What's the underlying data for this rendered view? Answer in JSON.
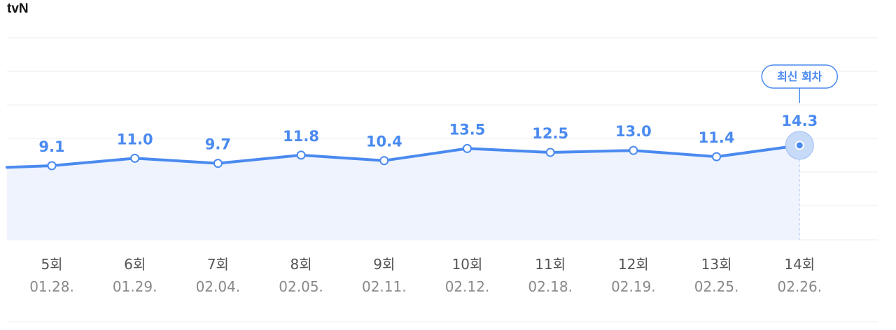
{
  "channel": "tvN",
  "latest_badge": "최신 회차",
  "colors": {
    "line": "#4a8af0",
    "fill": "#eef3fd",
    "grid": "#e9ecef",
    "value_label": "#4a8af0"
  },
  "chart_data": {
    "type": "line",
    "title": "tvN",
    "categories": [
      "5회",
      "6회",
      "7회",
      "8회",
      "9회",
      "10회",
      "11회",
      "12회",
      "13회",
      "14회"
    ],
    "dates": [
      "01.28.",
      "01.29.",
      "02.04.",
      "02.05.",
      "02.11.",
      "02.12.",
      "02.18.",
      "02.19.",
      "02.25.",
      "02.26."
    ],
    "values": [
      9.1,
      11.0,
      9.7,
      11.8,
      10.4,
      13.5,
      12.5,
      13.0,
      11.4,
      14.3
    ],
    "highlight_index": 9,
    "grid": true,
    "area_fill": true
  }
}
